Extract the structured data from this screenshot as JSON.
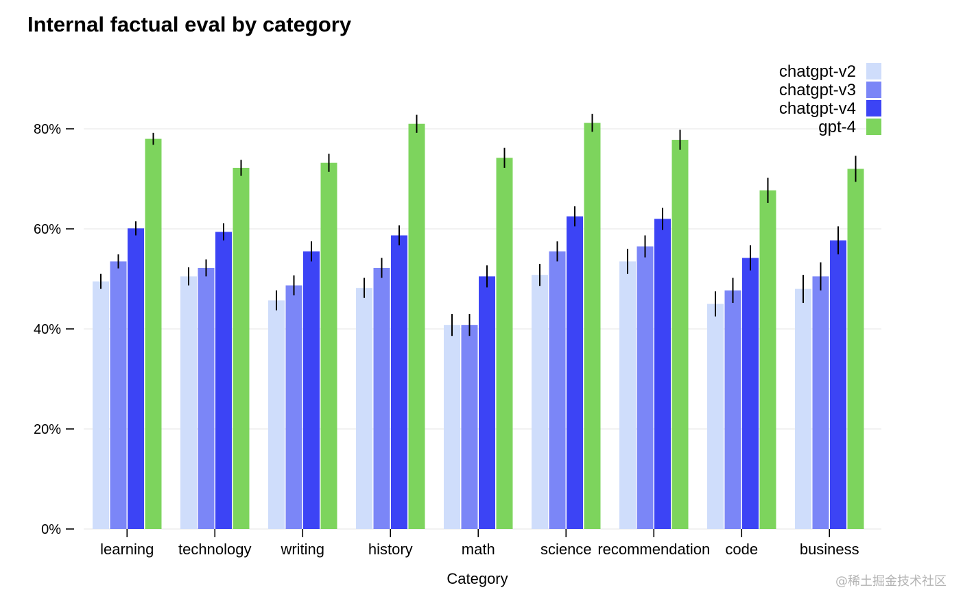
{
  "chart_data": {
    "type": "bar",
    "title": "Internal factual eval by category",
    "xlabel": "Category",
    "ylabel": "",
    "ylim": [
      0,
      0.9
    ],
    "y_ticks": [
      0,
      0.2,
      0.4,
      0.6,
      0.8
    ],
    "y_tick_labels": [
      "0%",
      "20%",
      "40%",
      "60%",
      "80%"
    ],
    "grid": true,
    "legend_position": "top-right",
    "categories": [
      "learning",
      "technology",
      "writing",
      "history",
      "math",
      "science",
      "recommendation",
      "code",
      "business"
    ],
    "series": [
      {
        "name": "chatgpt-v2",
        "color": "#cfddfb",
        "values": [
          0.495,
          0.505,
          0.457,
          0.482,
          0.408,
          0.508,
          0.535,
          0.45,
          0.48
        ],
        "errors": [
          0.015,
          0.018,
          0.02,
          0.02,
          0.022,
          0.022,
          0.025,
          0.025,
          0.028
        ]
      },
      {
        "name": "chatgpt-v3",
        "color": "#7b86f7",
        "values": [
          0.535,
          0.522,
          0.487,
          0.522,
          0.408,
          0.555,
          0.565,
          0.477,
          0.505
        ],
        "errors": [
          0.014,
          0.017,
          0.02,
          0.02,
          0.022,
          0.02,
          0.022,
          0.025,
          0.028
        ]
      },
      {
        "name": "chatgpt-v4",
        "color": "#3c44f5",
        "values": [
          0.601,
          0.594,
          0.555,
          0.587,
          0.505,
          0.625,
          0.62,
          0.542,
          0.577
        ],
        "errors": [
          0.014,
          0.017,
          0.02,
          0.02,
          0.022,
          0.02,
          0.022,
          0.025,
          0.028
        ]
      },
      {
        "name": "gpt-4",
        "color": "#7dd45d",
        "values": [
          0.78,
          0.722,
          0.732,
          0.81,
          0.742,
          0.812,
          0.778,
          0.677,
          0.72
        ],
        "errors": [
          0.012,
          0.016,
          0.018,
          0.018,
          0.02,
          0.018,
          0.02,
          0.025,
          0.026
        ]
      }
    ]
  },
  "watermark": "@稀土掘金技术社区"
}
